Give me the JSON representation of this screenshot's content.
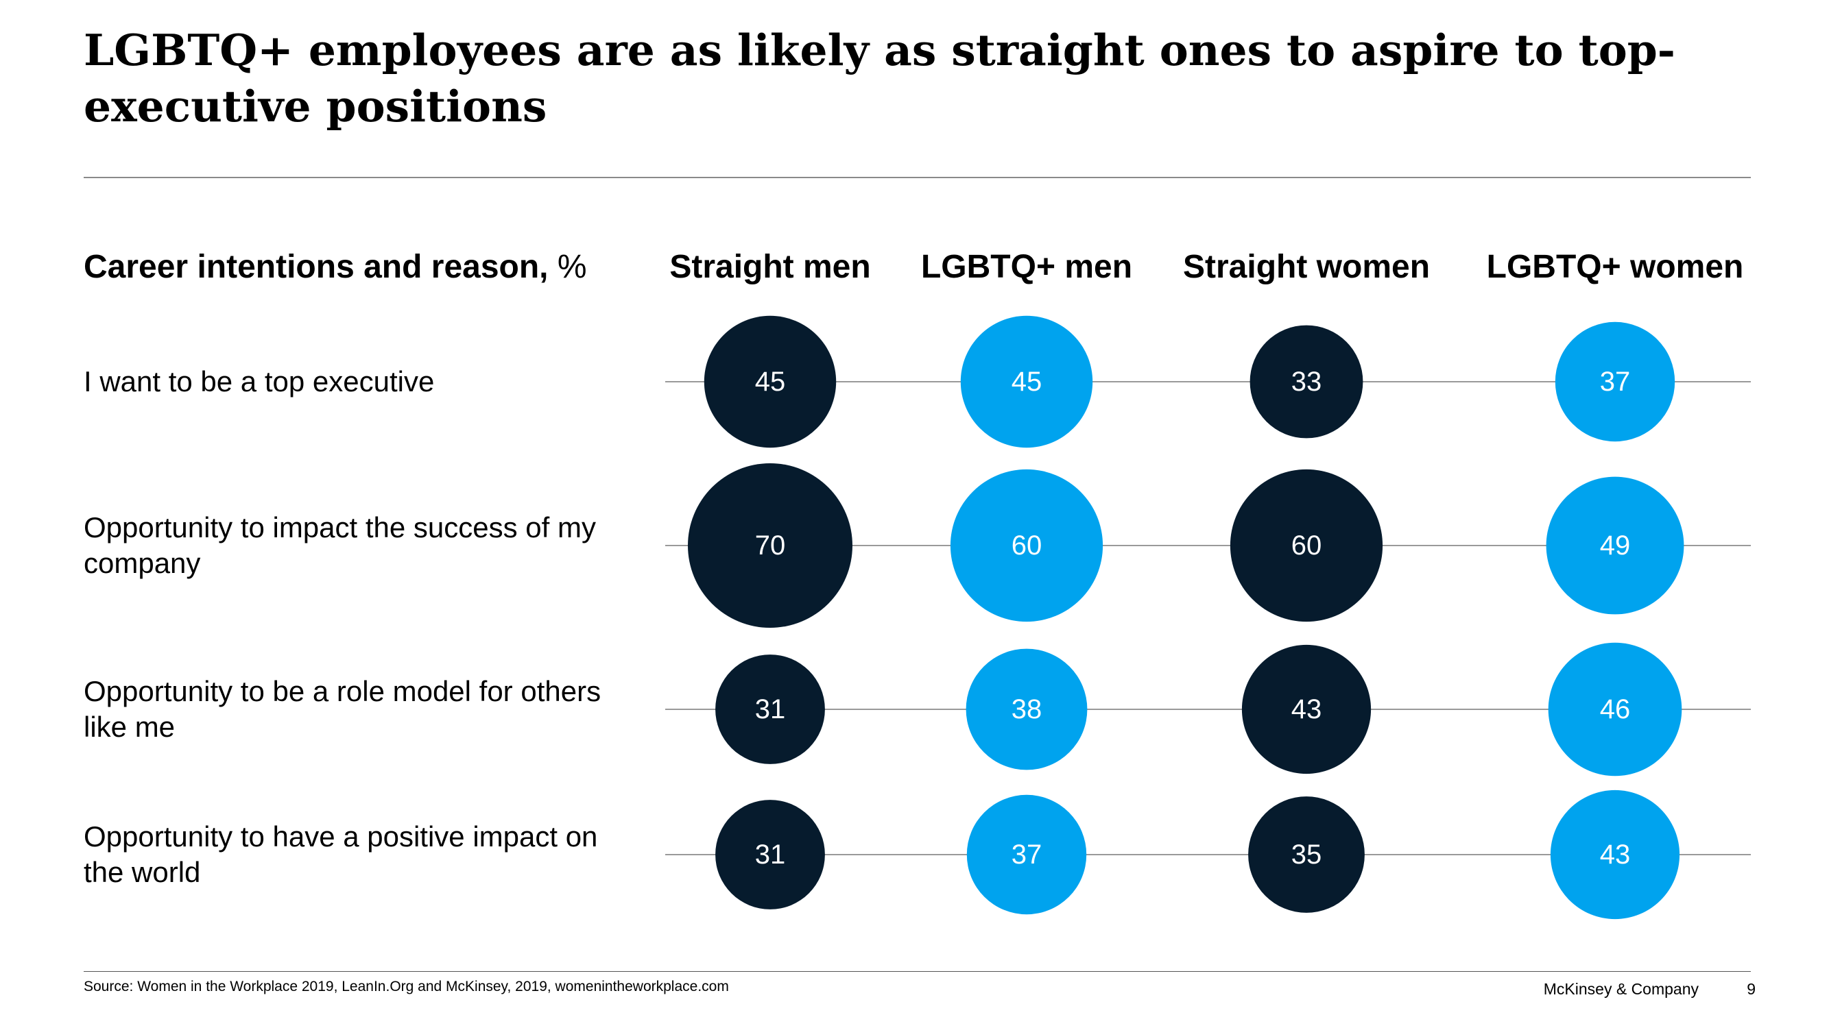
{
  "title": "LGBTQ+ employees are as likely as straight ones to aspire to top-executive positions",
  "row_header": {
    "bold": "Career intentions and reason,",
    "unit": " %"
  },
  "footer": {
    "source": "Source: Women in the Workplace 2019, LeanIn.Org and McKinsey, 2019, womenintheworkplace.com",
    "brand": "McKinsey & Company",
    "page": "9"
  },
  "colors": {
    "dark": "#061b2d",
    "light": "#00a3ee",
    "line": "#9a9a9a",
    "label": "#ffffff"
  },
  "chart_data": {
    "type": "bubble",
    "columns": [
      "Straight men",
      "LGBTQ+ men",
      "Straight women",
      "LGBTQ+ women"
    ],
    "column_colors": [
      "dark",
      "light",
      "dark",
      "light"
    ],
    "rows": [
      "I want to be a top executive",
      "Opportunity to impact the success of my company",
      "Opportunity to be a role model for others like me",
      "Opportunity to have a positive impact on the world"
    ],
    "values": [
      [
        45,
        45,
        33,
        37
      ],
      [
        70,
        60,
        60,
        49
      ],
      [
        31,
        38,
        43,
        46
      ],
      [
        31,
        37,
        35,
        43
      ]
    ]
  }
}
